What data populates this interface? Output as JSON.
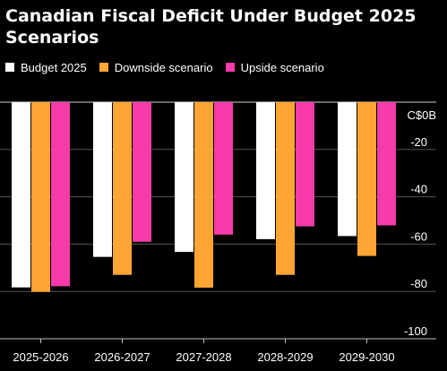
{
  "chart_data": {
    "type": "bar",
    "title": "Canadian Fiscal Deficit Under Budget 2025 Scenarios",
    "unit": "C$0B",
    "categories": [
      "2025-2026",
      "2026-2027",
      "2027-2028",
      "2028-2029",
      "2029-2030"
    ],
    "series": [
      {
        "name": "Budget 2025",
        "color": "#ffffff",
        "values": [
          -78.3,
          -65.4,
          -63.3,
          -57.9,
          -56.6
        ]
      },
      {
        "name": "Downside scenario",
        "color": "#ffa533",
        "values": [
          -80.2,
          -73.0,
          -78.4,
          -73.0,
          -65.0
        ]
      },
      {
        "name": "Upside scenario",
        "color": "#f73ba9",
        "values": [
          -77.8,
          -59.0,
          -56.0,
          -52.5,
          -52.1
        ]
      }
    ],
    "ylim": [
      -100,
      0
    ],
    "yticks": [
      -20,
      -40,
      -60,
      -80,
      -100
    ],
    "grid": true,
    "legend_position": "top-left"
  }
}
